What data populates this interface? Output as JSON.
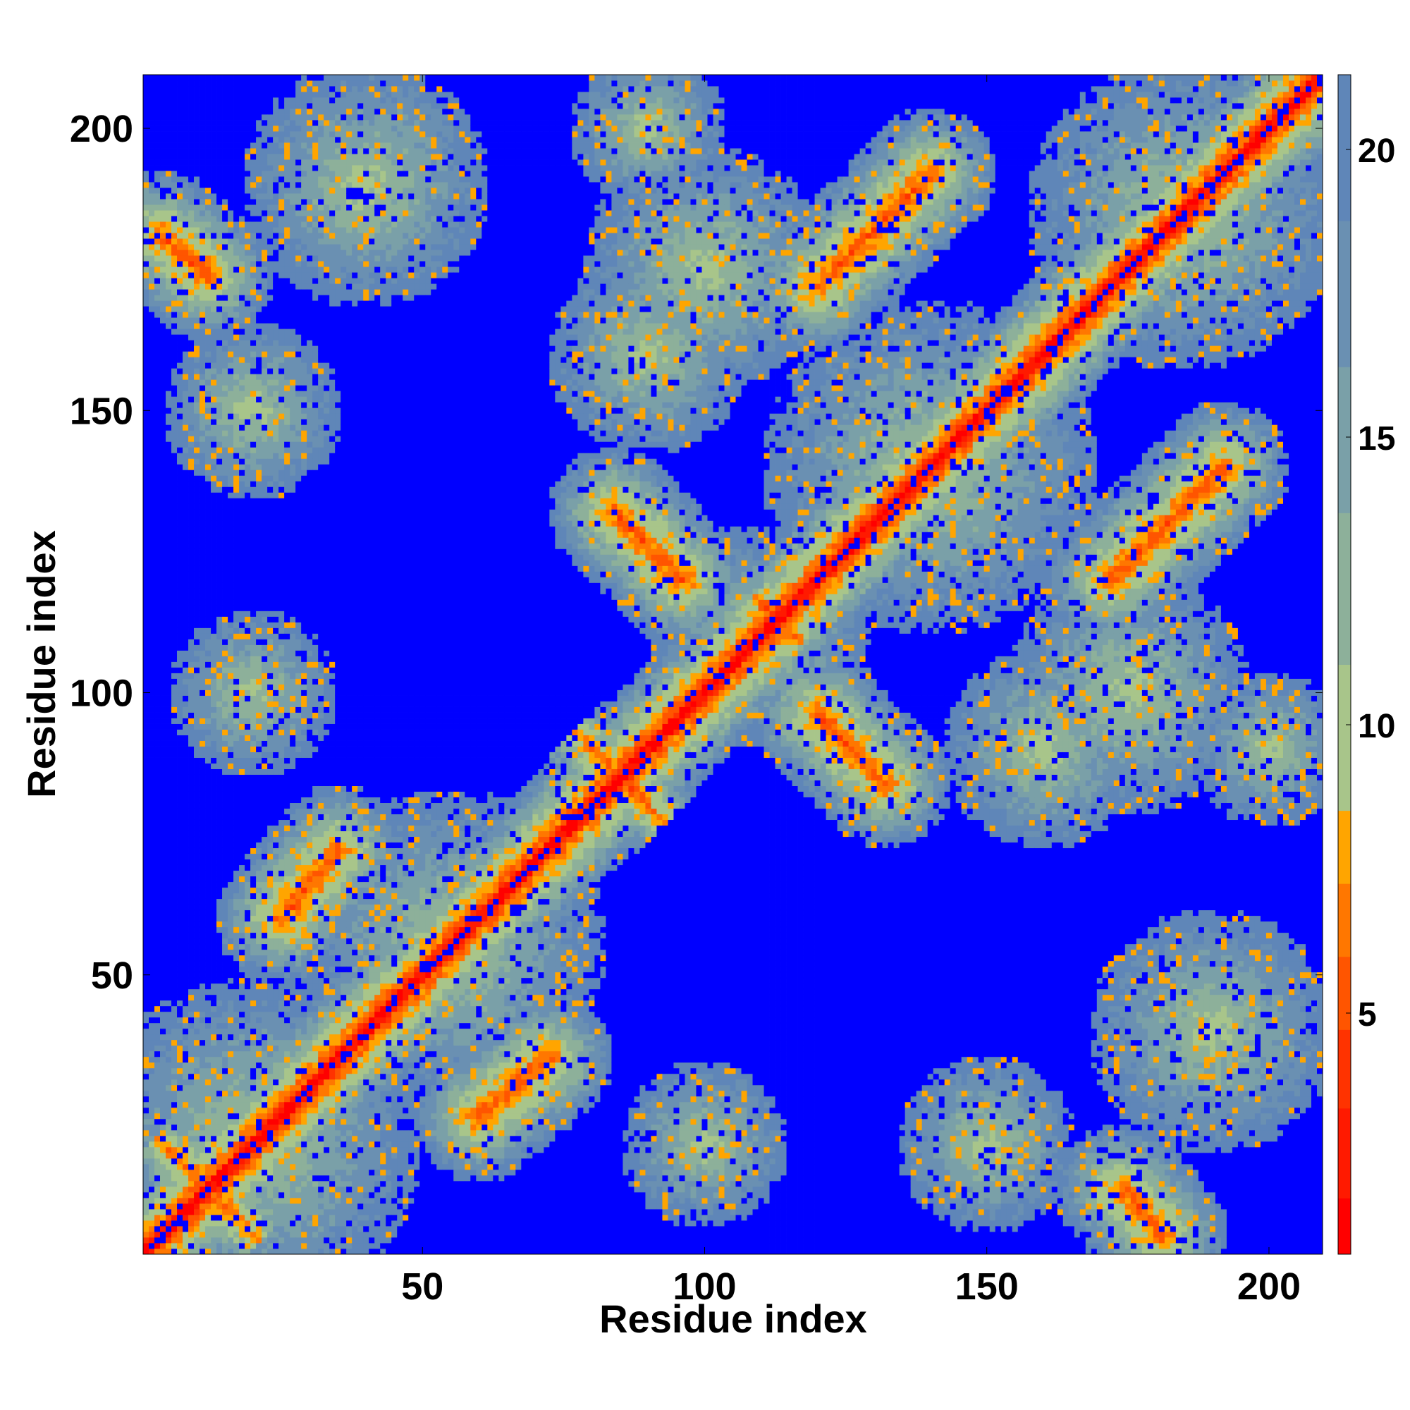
{
  "chart_data": {
    "type": "heatmap",
    "title": "",
    "xlabel": "Residue index",
    "ylabel": "Residue index",
    "x_range": [
      1,
      209
    ],
    "y_range": [
      1,
      209
    ],
    "x_ticks": [
      {
        "value": 50,
        "label": "50"
      },
      {
        "value": 100,
        "label": "100"
      },
      {
        "value": 150,
        "label": "150"
      },
      {
        "value": 200,
        "label": "200"
      }
    ],
    "y_ticks": [
      {
        "value": 50,
        "label": "50"
      },
      {
        "value": 100,
        "label": "100"
      },
      {
        "value": 150,
        "label": "150"
      },
      {
        "value": 200,
        "label": "200"
      }
    ],
    "colorbar": {
      "range": [
        0,
        21
      ],
      "ticks": [
        {
          "value": 5,
          "label": "5"
        },
        {
          "value": 10,
          "label": "10"
        },
        {
          "value": 15,
          "label": "15"
        },
        {
          "value": 20,
          "label": "20"
        }
      ],
      "bands": [
        {
          "from": 0,
          "to": 1,
          "color": "#ff0000"
        },
        {
          "from": 1,
          "to": 2.6,
          "color": "#ff1a00"
        },
        {
          "from": 2.6,
          "to": 4,
          "color": "#ff3300"
        },
        {
          "from": 4,
          "to": 5.3,
          "color": "#ff5500"
        },
        {
          "from": 5.3,
          "to": 6.6,
          "color": "#ff7700"
        },
        {
          "from": 6.6,
          "to": 7.9,
          "color": "#ffa500"
        },
        {
          "from": 7.9,
          "to": 10.5,
          "color": "#a8c58a"
        },
        {
          "from": 10.5,
          "to": 13.2,
          "color": "#8db09a"
        },
        {
          "from": 13.2,
          "to": 15.8,
          "color": "#7aa0a8"
        },
        {
          "from": 15.8,
          "to": 18.4,
          "color": "#6a90b2"
        },
        {
          "from": 18.4,
          "to": 21,
          "color": "#5f86b8"
        },
        {
          "from": 21,
          "to": 99,
          "color": "#0000ff"
        }
      ]
    },
    "cell_value_cap": 21,
    "background_value": 21,
    "contact_regions": [
      {
        "kind": "diagonal",
        "note": "main diagonal, |i-j| small"
      },
      {
        "kind": "anti",
        "i_center": 85,
        "j_center": 85,
        "length": 16
      },
      {
        "kind": "anti",
        "i_center": 113,
        "j_center": 113,
        "length": 8
      },
      {
        "kind": "anti",
        "i_center": 12,
        "j_center": 12,
        "length": 18
      },
      {
        "kind": "segment",
        "i_start": 84,
        "i_end": 96,
        "j_start": 132,
        "j_end": 120
      },
      {
        "kind": "segment",
        "i_start": 120,
        "i_end": 132,
        "j_start": 96,
        "j_end": 84
      },
      {
        "kind": "segment",
        "i_start": 4,
        "i_end": 12,
        "j_start": 181,
        "j_end": 174
      },
      {
        "kind": "segment",
        "i_start": 174,
        "i_end": 181,
        "j_start": 12,
        "j_end": 4
      },
      {
        "kind": "segment",
        "i_start": 120,
        "i_end": 140,
        "j_start": 172,
        "j_end": 192
      },
      {
        "kind": "segment",
        "i_start": 172,
        "i_end": 192,
        "j_start": 120,
        "j_end": 140
      },
      {
        "kind": "segment",
        "i_start": 60,
        "i_end": 72,
        "j_start": 25,
        "j_end": 35
      },
      {
        "kind": "segment",
        "i_start": 25,
        "i_end": 35,
        "j_start": 60,
        "j_end": 72
      }
    ],
    "grid": false,
    "legend": "colorbar-right"
  }
}
